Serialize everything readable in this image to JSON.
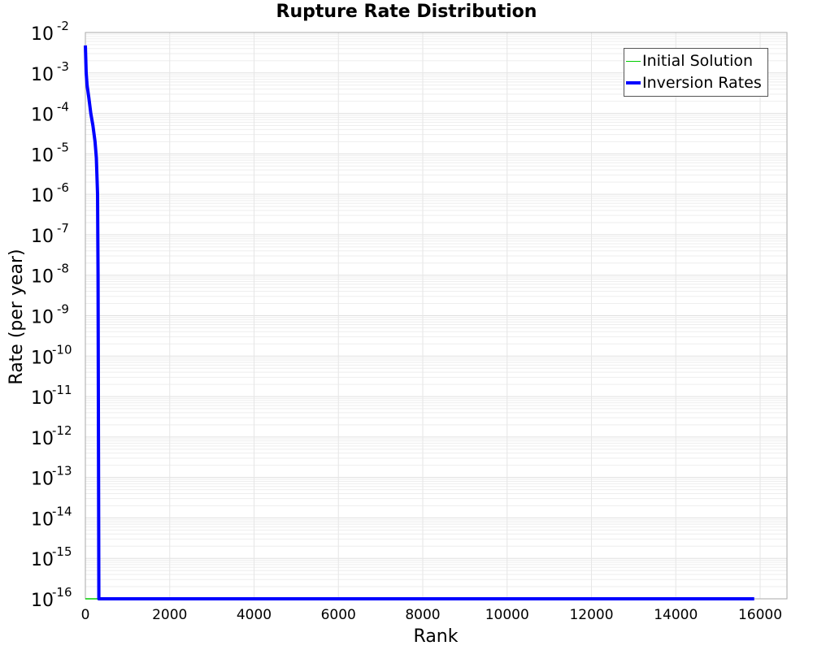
{
  "chart_data": {
    "type": "line",
    "title": "Rupture Rate Distribution",
    "xlabel": "Rank",
    "ylabel": "Rate (per year)",
    "xlim": [
      0,
      16600
    ],
    "ylim": [
      1e-16,
      0.01
    ],
    "yscale": "log",
    "grid": true,
    "legend_position": "top-right",
    "x_ticks": [
      "0",
      "2000",
      "4000",
      "6000",
      "8000",
      "10000",
      "12000",
      "14000",
      "16000"
    ],
    "y_ticks": [
      "10^-2",
      "10^-3",
      "10^-4",
      "10^-5",
      "10^-6",
      "10^-7",
      "10^-8",
      "10^-9",
      "10^-10",
      "10^-11",
      "10^-12",
      "10^-13",
      "10^-14",
      "10^-15",
      "10^-16"
    ],
    "series": [
      {
        "name": "Initial Solution",
        "color": "#00cc00",
        "x": [
          0,
          300
        ],
        "y": [
          1e-16,
          1e-16
        ]
      },
      {
        "name": "Inversion Rates",
        "color": "#0000ff",
        "x": [
          0,
          20,
          40,
          80,
          130,
          180,
          230,
          260,
          290,
          300,
          310,
          320,
          15860
        ],
        "y": [
          0.0048,
          0.001,
          0.0005,
          0.00025,
          0.0001,
          5e-05,
          2e-05,
          8e-06,
          1e-06,
          1e-08,
          1e-12,
          1e-16,
          1e-16
        ]
      }
    ]
  },
  "labels": {
    "title": "Rupture Rate Distribution",
    "xlabel": "Rank",
    "ylabel": "Rate (per year)",
    "legend": [
      "Initial Solution",
      "Inversion Rates"
    ]
  }
}
